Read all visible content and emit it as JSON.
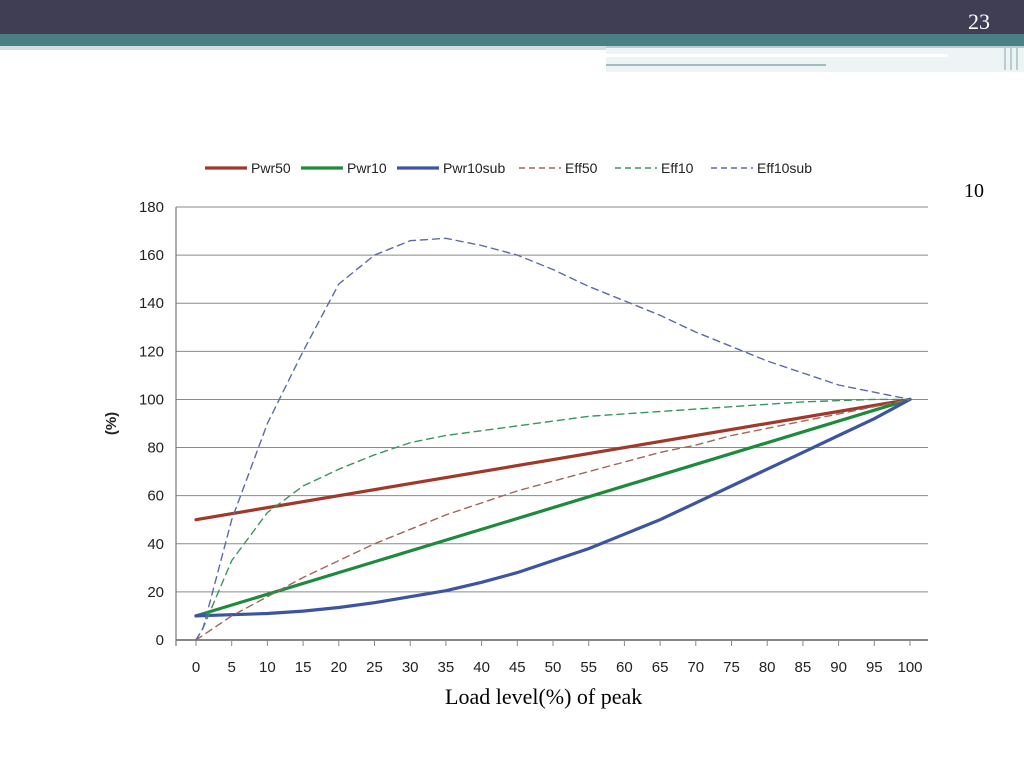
{
  "slide": {
    "number": "23",
    "corner_label": "10",
    "caption": "Load level(%) of peak"
  },
  "colors": {
    "pwr50": "#a0392a",
    "pwr10": "#1e8a3c",
    "pwr10sub": "#3d55a0",
    "eff50": "#a0675a",
    "eff10": "#3a9460",
    "eff10sub": "#5e6aa8"
  },
  "chart_data": {
    "type": "line",
    "ylabel": "(%)",
    "xlabel": "",
    "x": [
      0,
      5,
      10,
      15,
      20,
      25,
      30,
      35,
      40,
      45,
      50,
      55,
      60,
      65,
      70,
      75,
      80,
      85,
      90,
      95,
      100
    ],
    "xticks": [
      "0",
      "5",
      "10",
      "15",
      "20",
      "25",
      "30",
      "35",
      "40",
      "45",
      "50",
      "55",
      "60",
      "65",
      "70",
      "75",
      "80",
      "85",
      "90",
      "95",
      "100"
    ],
    "yticks": [
      "0",
      "20",
      "40",
      "60",
      "80",
      "100",
      "120",
      "140",
      "160",
      "180"
    ],
    "ylim": [
      0,
      180
    ],
    "xlim": [
      0,
      100
    ],
    "grid": "horizontal",
    "legend": "top",
    "series": [
      {
        "name": "Pwr50",
        "style": "solid",
        "x": [
          0,
          100
        ],
        "y": [
          50,
          100
        ]
      },
      {
        "name": "Pwr10",
        "style": "solid",
        "x": [
          0,
          100
        ],
        "y": [
          10,
          100
        ]
      },
      {
        "name": "Pwr10sub",
        "style": "solid",
        "x": [
          0,
          5,
          10,
          15,
          20,
          25,
          30,
          35,
          40,
          45,
          50,
          55,
          60,
          65,
          70,
          75,
          80,
          85,
          90,
          95,
          100
        ],
        "y": [
          10,
          10.5,
          11,
          12,
          13.5,
          15.5,
          18,
          20.5,
          24,
          28,
          33,
          38,
          44,
          50,
          57,
          64,
          71,
          78,
          85,
          92,
          100
        ]
      },
      {
        "name": "Eff50",
        "style": "dashed",
        "x": [
          0,
          5,
          10,
          15,
          20,
          25,
          30,
          35,
          40,
          45,
          50,
          55,
          60,
          65,
          70,
          75,
          80,
          85,
          90,
          95,
          100
        ],
        "y": [
          0,
          10,
          18,
          26,
          33,
          40,
          46,
          52,
          57,
          62,
          66,
          70,
          74,
          78,
          81,
          85,
          88,
          91,
          94,
          97,
          100
        ]
      },
      {
        "name": "Eff10",
        "style": "dashed",
        "x": [
          0,
          1,
          5,
          10,
          15,
          20,
          25,
          30,
          35,
          40,
          45,
          50,
          55,
          60,
          65,
          70,
          75,
          80,
          85,
          90,
          95,
          100
        ],
        "y": [
          0,
          5,
          33,
          53,
          64,
          71,
          77,
          82,
          85,
          87,
          89,
          91,
          93,
          94,
          95,
          96,
          97,
          98,
          99,
          99.5,
          100,
          100
        ]
      },
      {
        "name": "Eff10sub",
        "style": "dashed",
        "x": [
          0,
          1,
          5,
          10,
          15,
          20,
          25,
          30,
          35,
          40,
          45,
          50,
          55,
          60,
          65,
          70,
          75,
          80,
          85,
          90,
          95,
          100
        ],
        "y": [
          0,
          5,
          50,
          90,
          120,
          148,
          160,
          166,
          167,
          164,
          160,
          154,
          147,
          141,
          135,
          128,
          122,
          116,
          111,
          106,
          103,
          100
        ]
      }
    ]
  }
}
